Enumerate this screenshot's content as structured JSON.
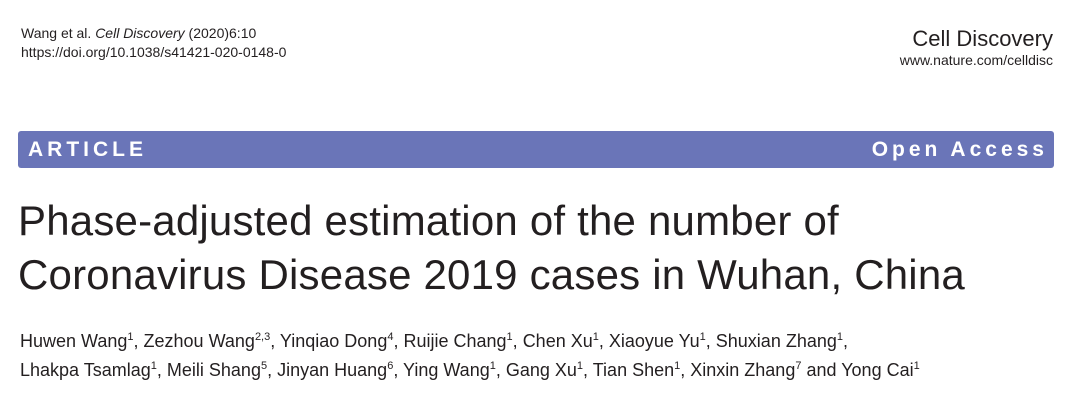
{
  "header": {
    "citation_authors": "Wang et al.",
    "citation_journal": "Cell Discovery",
    "citation_year_volume": "(2020)6:10",
    "doi": "https://doi.org/10.1038/s41421-020-0148-0",
    "journal_name": "Cell Discovery",
    "journal_url": "www.nature.com/celldisc"
  },
  "banner": {
    "article_type": "ARTICLE",
    "access": "Open Access"
  },
  "title": {
    "line1": "Phase-adjusted estimation of the number of",
    "line2": "Coronavirus Disease 2019 cases in Wuhan, China"
  },
  "authors": {
    "line1": [
      {
        "name": "Huwen Wang",
        "aff": "1",
        "sep": ", "
      },
      {
        "name": "Zezhou Wang",
        "aff": "2,3",
        "sep": ", "
      },
      {
        "name": "Yinqiao Dong",
        "aff": "4",
        "sep": ", "
      },
      {
        "name": "Ruijie Chang",
        "aff": "1",
        "sep": ", "
      },
      {
        "name": "Chen Xu",
        "aff": "1",
        "sep": ", "
      },
      {
        "name": "Xiaoyue Yu",
        "aff": "1",
        "sep": ", "
      },
      {
        "name": "Shuxian Zhang",
        "aff": "1",
        "sep": ","
      }
    ],
    "line2": [
      {
        "name": "Lhakpa Tsamlag",
        "aff": "1",
        "sep": ", "
      },
      {
        "name": "Meili Shang",
        "aff": "5",
        "sep": ", "
      },
      {
        "name": "Jinyan Huang",
        "aff": "6",
        "sep": ", "
      },
      {
        "name": "Ying Wang",
        "aff": "1",
        "sep": ", "
      },
      {
        "name": "Gang Xu",
        "aff": "1",
        "sep": ", "
      },
      {
        "name": "Tian Shen",
        "aff": "1",
        "sep": ", "
      },
      {
        "name": "Xinxin Zhang",
        "aff": "7",
        "sep": " and "
      },
      {
        "name": "Yong Cai",
        "aff": "1",
        "sep": ""
      }
    ]
  },
  "colors": {
    "banner_bg": "#6a75b8",
    "text": "#231f20"
  }
}
